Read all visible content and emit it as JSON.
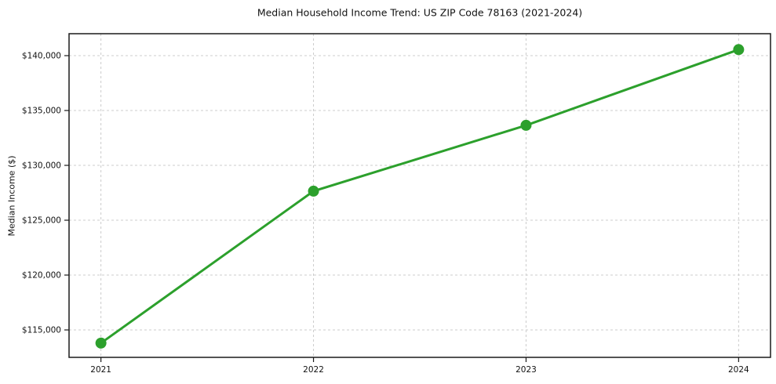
{
  "chart_data": {
    "type": "line",
    "title": "Median Household Income Trend: US ZIP Code 78163 (2021-2024)",
    "xlabel": "",
    "ylabel": "Median Income ($)",
    "x": [
      2021,
      2022,
      2023,
      2024
    ],
    "xtick_labels": [
      "2021",
      "2022",
      "2023",
      "2024"
    ],
    "series": [
      {
        "name": "Median Household Income",
        "values": [
          113800,
          127650,
          133650,
          140550
        ]
      }
    ],
    "yticks": [
      115000,
      120000,
      125000,
      130000,
      135000,
      140000
    ],
    "ytick_labels": [
      "$115,000",
      "$120,000",
      "$125,000",
      "$130,000",
      "$135,000",
      "$140,000"
    ],
    "xlim": [
      2020.85,
      2024.15
    ],
    "ylim": [
      112500,
      142000
    ],
    "grid": true,
    "legend": "none",
    "colors": {
      "line": "#2ca02c",
      "marker": "#2ca02c",
      "grid": "#cccccc",
      "spine": "#1a1a1a",
      "text": "#111111",
      "background": "#ffffff"
    },
    "line_width": 3,
    "marker_radius": 7
  }
}
